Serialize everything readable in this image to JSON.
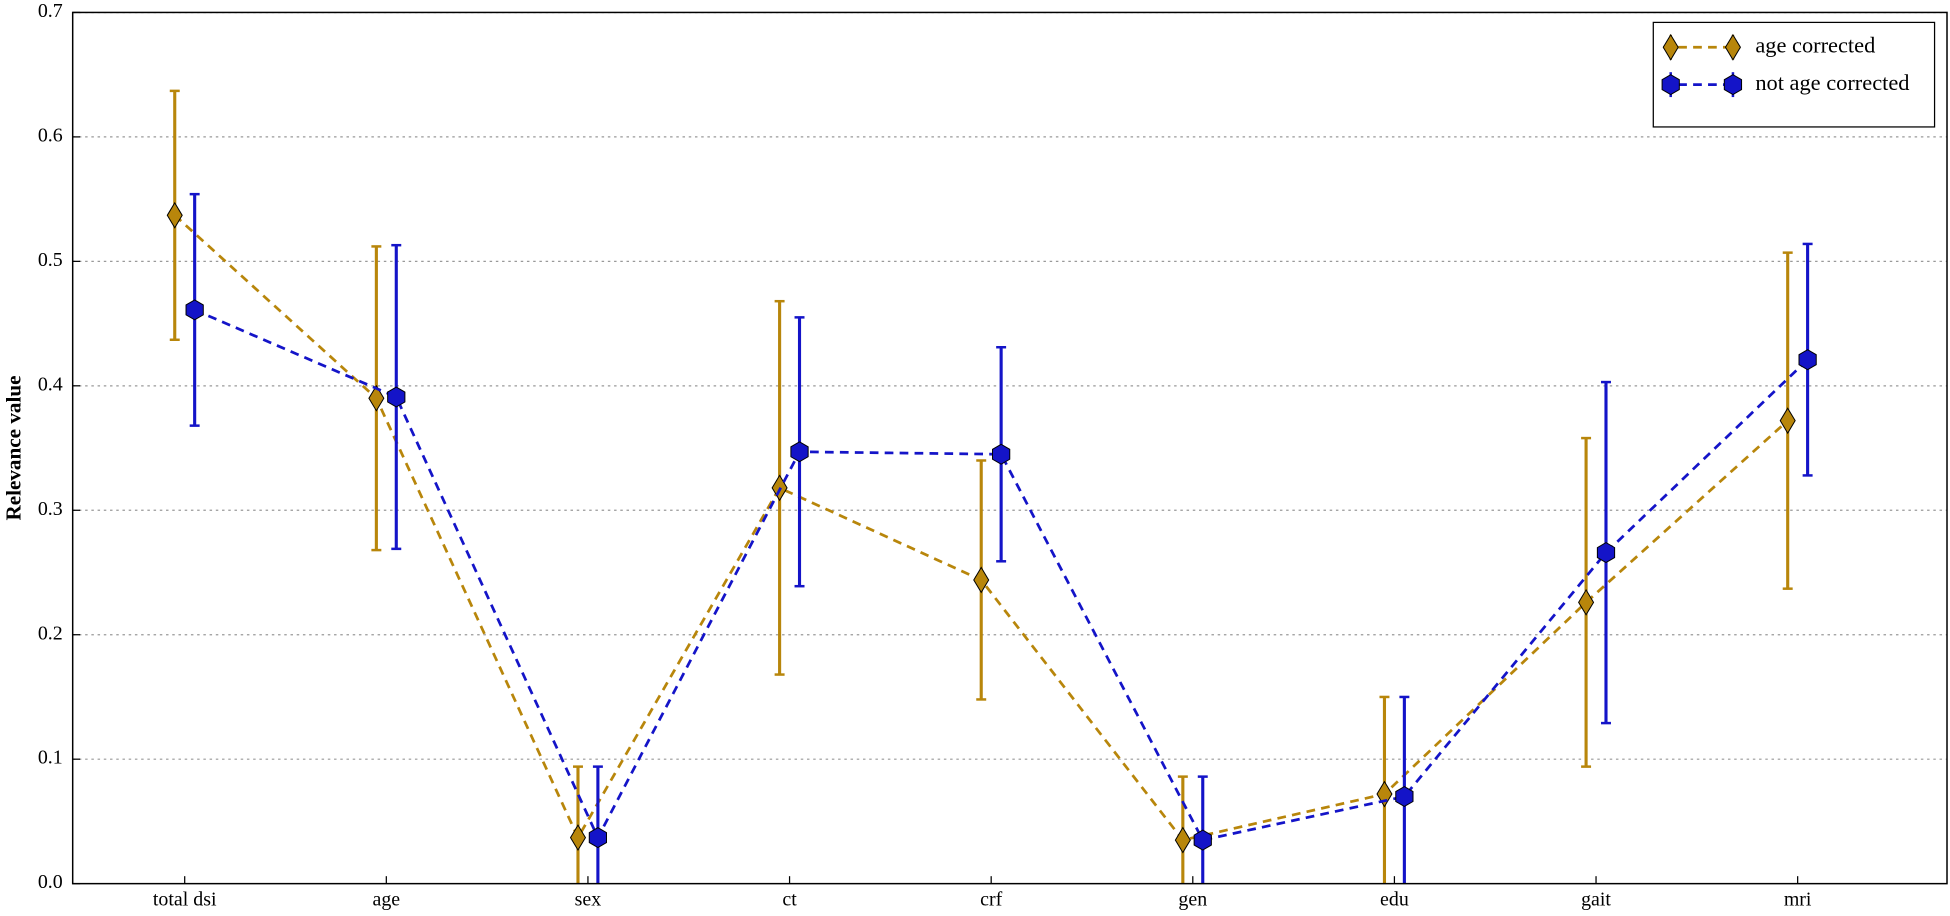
{
  "chart_data": {
    "type": "errorbar",
    "ylabel": "Relevance value",
    "categories": [
      "total dsi",
      "age",
      "sex",
      "ct",
      "crf",
      "gen",
      "edu",
      "gait",
      "mri"
    ],
    "series": [
      {
        "name": "age corrected",
        "color": "#b8860b",
        "marker": "diamond",
        "linestyle": "dashed",
        "values": [
          0.537,
          0.39,
          0.037,
          0.318,
          0.244,
          0.035,
          0.072,
          0.226,
          0.372
        ],
        "errors": [
          0.1,
          0.122,
          0.057,
          0.15,
          0.096,
          0.051,
          0.078,
          0.132,
          0.135
        ]
      },
      {
        "name": "not age corrected",
        "color": "#1414c8",
        "marker": "hexagon",
        "linestyle": "dashed",
        "values": [
          0.461,
          0.391,
          0.037,
          0.347,
          0.345,
          0.035,
          0.07,
          0.266,
          0.421
        ],
        "errors": [
          0.093,
          0.122,
          0.057,
          0.108,
          0.086,
          0.051,
          0.08,
          0.137,
          0.093
        ]
      }
    ],
    "ylim": [
      0,
      0.7
    ],
    "yticks": [
      {
        "value": 0,
        "label": "0.0"
      },
      0.1,
      0.2,
      0.3,
      0.4,
      0.5,
      0.6,
      0.7
    ],
    "grid": true,
    "legend": "upper right"
  }
}
